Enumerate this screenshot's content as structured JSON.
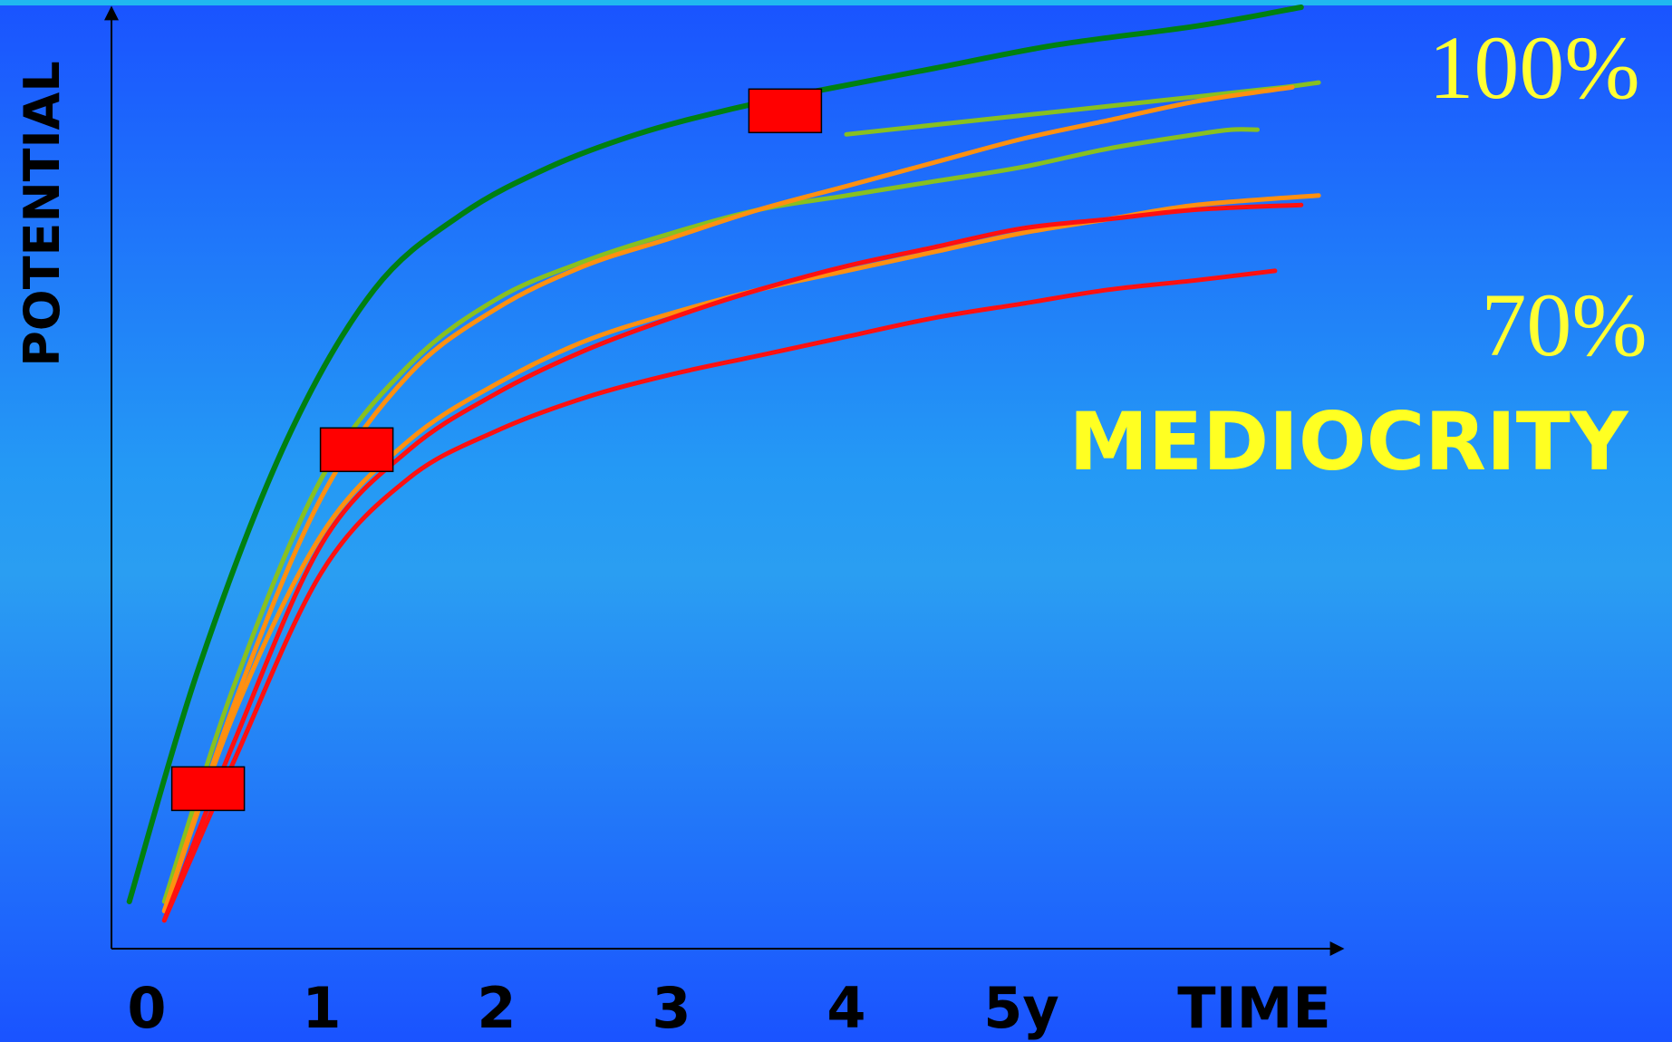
{
  "chart_data": {
    "type": "line",
    "title": "",
    "xlabel": "TIME",
    "ylabel": "POTENTIAL",
    "x_ticks": [
      "0",
      "1",
      "2",
      "3",
      "4",
      "5y"
    ],
    "xlim": [
      -0.1,
      6.9
    ],
    "ylim": [
      0,
      100
    ],
    "grid": false,
    "legend": "none",
    "annotations": {
      "top_label": "100%",
      "lower_label": "70%",
      "caption": "MEDIOCRITY"
    },
    "series": [
      {
        "color": "#008010",
        "x": [
          -0.1,
          0.3,
          0.8,
          1.3,
          1.8,
          2.3,
          2.8,
          3.3,
          3.8,
          4.5,
          5.2,
          6.0,
          6.6
        ],
        "y": [
          5,
          30,
          54,
          70,
          78,
          83,
          86.5,
          89,
          91,
          93.5,
          96,
          98,
          100
        ]
      },
      {
        "color": "#88c020",
        "x": [
          0.1,
          0.5,
          1.0,
          1.5,
          2.0,
          2.5,
          3.0,
          3.5,
          4.0,
          4.5,
          5.0,
          5.5,
          6.0,
          6.2,
          6.35
        ],
        "y": [
          5,
          28,
          50,
          62,
          69,
          73,
          76,
          78.5,
          80,
          81.5,
          83,
          85,
          86.5,
          87,
          87
        ]
      },
      {
        "color": "#88c020",
        "x": [
          4.0,
          4.5,
          5.0,
          5.5,
          6.0,
          6.5,
          6.7
        ],
        "y": [
          86.5,
          87.5,
          88.5,
          89.5,
          90.5,
          91.5,
          92
        ]
      },
      {
        "color": "#ff9010",
        "x": [
          0.1,
          0.5,
          1.0,
          1.5,
          2.0,
          2.5,
          3.0,
          3.5,
          4.0,
          4.5,
          5.0,
          5.5,
          6.0,
          6.55
        ],
        "y": [
          4,
          26,
          48,
          61,
          68,
          72.5,
          75.5,
          78.5,
          81,
          83.5,
          86,
          88,
          90,
          91.5
        ]
      },
      {
        "color": "#ff9010",
        "x": [
          0.1,
          0.5,
          1.0,
          1.5,
          2.0,
          2.5,
          3.0,
          3.5,
          4.0,
          4.5,
          5.0,
          5.5,
          6.0,
          6.7
        ],
        "y": [
          4,
          25,
          44,
          54,
          60,
          64.5,
          67.5,
          70,
          72,
          74,
          76,
          77.5,
          79,
          80
        ]
      },
      {
        "color": "#ff1010",
        "x": [
          0.1,
          0.5,
          1.0,
          1.5,
          2.0,
          2.5,
          3.0,
          3.5,
          4.0,
          4.5,
          5.0,
          5.5,
          6.0,
          6.6
        ],
        "y": [
          3,
          22,
          43,
          53,
          59,
          63.5,
          67,
          70,
          72.5,
          74.5,
          76.5,
          77.5,
          78.5,
          79
        ]
      },
      {
        "color": "#ff1010",
        "x": [
          0.1,
          0.5,
          1.0,
          1.5,
          2.0,
          2.5,
          3.0,
          3.5,
          4.0,
          4.5,
          5.0,
          5.5,
          6.0,
          6.45
        ],
        "y": [
          3,
          20,
          40,
          50,
          55,
          58.5,
          61,
          63,
          65,
          67,
          68.5,
          70,
          71,
          72
        ]
      }
    ],
    "markers": [
      {
        "x": 0.35,
        "y": 17,
        "color": "#ff0000"
      },
      {
        "x": 1.2,
        "y": 53,
        "color": "#ff0000"
      },
      {
        "x": 3.65,
        "y": 89,
        "color": "#ff0000"
      }
    ]
  }
}
